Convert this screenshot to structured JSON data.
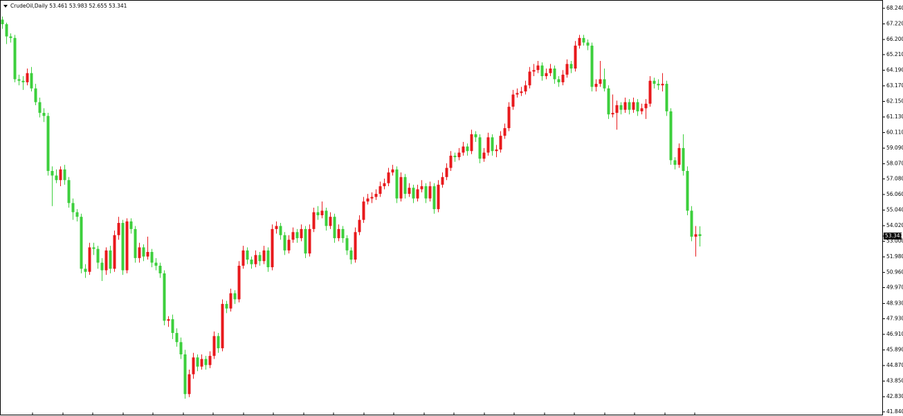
{
  "chart_data": {
    "type": "candlestick",
    "title": "CrudeOil,Daily  53.461 53.983 52.655 53.341",
    "up_color": "#e8191c",
    "down_color": "#3ccf3c",
    "ylim": [
      41.84,
      68.24
    ],
    "yticks": [
      {
        "value": 68.24,
        "label": "68.240"
      },
      {
        "value": 67.22,
        "label": "67.220"
      },
      {
        "value": 66.2,
        "label": "66.200"
      },
      {
        "value": 65.21,
        "label": "65.210"
      },
      {
        "value": 64.19,
        "label": "64.190"
      },
      {
        "value": 63.17,
        "label": "63.170"
      },
      {
        "value": 62.15,
        "label": "62.150"
      },
      {
        "value": 61.13,
        "label": "61.130"
      },
      {
        "value": 60.11,
        "label": "60.110"
      },
      {
        "value": 59.09,
        "label": "59.090"
      },
      {
        "value": 58.07,
        "label": "58.070"
      },
      {
        "value": 57.08,
        "label": "57.080"
      },
      {
        "value": 56.06,
        "label": "56.060"
      },
      {
        "value": 55.04,
        "label": "55.040"
      },
      {
        "value": 54.02,
        "label": "54.020"
      },
      {
        "value": 53,
        "label": "53.000"
      },
      {
        "value": 51.98,
        "label": "51.980"
      },
      {
        "value": 50.96,
        "label": "50.960"
      },
      {
        "value": 49.97,
        "label": "49.970"
      },
      {
        "value": 48.93,
        "label": "48.930"
      },
      {
        "value": 47.93,
        "label": "47.930"
      },
      {
        "value": 46.91,
        "label": "46.910"
      },
      {
        "value": 45.89,
        "label": "45.890"
      },
      {
        "value": 44.87,
        "label": "44.870"
      },
      {
        "value": 43.85,
        "label": "43.850"
      },
      {
        "value": 42.83,
        "label": "42.830"
      },
      {
        "value": 41.84,
        "label": "41.840"
      }
    ],
    "last_price": 53.341,
    "candles": [
      [
        67.5,
        67.7,
        66.9,
        67.2
      ],
      [
        67.2,
        67.3,
        65.9,
        66.4
      ],
      [
        66.4,
        66.6,
        66.0,
        66.3
      ],
      [
        66.3,
        66.5,
        63.4,
        63.6
      ],
      [
        63.6,
        63.9,
        63.2,
        63.5
      ],
      [
        63.5,
        63.8,
        62.9,
        63.4
      ],
      [
        63.4,
        64.3,
        63.2,
        64.0
      ],
      [
        64.0,
        64.4,
        62.8,
        63.0
      ],
      [
        63.0,
        63.3,
        61.9,
        62.1
      ],
      [
        62.1,
        62.4,
        61.1,
        61.4
      ],
      [
        61.4,
        61.7,
        60.8,
        61.2
      ],
      [
        61.2,
        61.4,
        57.3,
        57.6
      ],
      [
        57.6,
        57.9,
        55.3,
        57.3
      ],
      [
        57.3,
        57.7,
        56.8,
        57.0
      ],
      [
        57.0,
        57.9,
        56.6,
        57.7
      ],
      [
        57.7,
        58.0,
        56.7,
        57.0
      ],
      [
        57.0,
        57.2,
        55.2,
        55.5
      ],
      [
        55.5,
        55.8,
        54.4,
        54.9
      ],
      [
        54.9,
        55.1,
        54.3,
        54.6
      ],
      [
        54.6,
        54.8,
        50.9,
        51.2
      ],
      [
        51.2,
        51.5,
        50.6,
        51.0
      ],
      [
        51.0,
        52.9,
        50.8,
        52.6
      ],
      [
        52.6,
        52.9,
        52.1,
        52.5
      ],
      [
        52.5,
        52.7,
        51.2,
        51.6
      ],
      [
        51.6,
        51.9,
        50.4,
        51.1
      ],
      [
        51.1,
        52.6,
        50.8,
        52.4
      ],
      [
        52.4,
        52.7,
        50.9,
        51.2
      ],
      [
        51.2,
        53.7,
        51.0,
        53.4
      ],
      [
        53.4,
        54.6,
        53.1,
        54.2
      ],
      [
        54.2,
        54.4,
        50.8,
        51.1
      ],
      [
        51.1,
        54.5,
        50.9,
        54.3
      ],
      [
        54.3,
        54.5,
        53.5,
        53.8
      ],
      [
        53.8,
        54.0,
        51.6,
        51.9
      ],
      [
        51.9,
        52.9,
        51.6,
        52.6
      ],
      [
        52.6,
        52.8,
        51.7,
        52.0
      ],
      [
        52.0,
        53.3,
        51.8,
        52.3
      ],
      [
        52.3,
        52.5,
        51.3,
        51.6
      ],
      [
        51.6,
        51.9,
        51.1,
        51.4
      ],
      [
        51.4,
        51.6,
        50.6,
        50.9
      ],
      [
        50.9,
        51.1,
        47.5,
        47.8
      ],
      [
        47.8,
        48.1,
        47.4,
        47.9
      ],
      [
        47.9,
        48.2,
        46.6,
        47.0
      ],
      [
        47.0,
        47.3,
        46.1,
        46.4
      ],
      [
        46.4,
        46.7,
        45.3,
        45.6
      ],
      [
        45.6,
        45.9,
        42.7,
        43.0
      ],
      [
        43.0,
        44.6,
        42.8,
        44.3
      ],
      [
        44.3,
        45.7,
        44.0,
        45.4
      ],
      [
        45.4,
        45.6,
        44.5,
        44.8
      ],
      [
        44.8,
        45.6,
        44.6,
        45.3
      ],
      [
        45.3,
        45.5,
        44.6,
        44.9
      ],
      [
        44.9,
        45.8,
        44.7,
        45.5
      ],
      [
        45.5,
        47.1,
        45.3,
        46.8
      ],
      [
        46.8,
        47.0,
        45.7,
        46.0
      ],
      [
        46.0,
        49.2,
        45.8,
        48.9
      ],
      [
        48.9,
        49.1,
        48.3,
        48.6
      ],
      [
        48.6,
        49.9,
        48.4,
        49.6
      ],
      [
        49.6,
        49.8,
        48.9,
        49.2
      ],
      [
        49.2,
        51.7,
        49.0,
        51.4
      ],
      [
        51.4,
        52.7,
        51.2,
        52.4
      ],
      [
        52.4,
        52.6,
        51.5,
        51.8
      ],
      [
        51.8,
        52.0,
        51.2,
        51.5
      ],
      [
        51.5,
        52.4,
        51.3,
        52.1
      ],
      [
        52.1,
        52.3,
        51.4,
        51.7
      ],
      [
        51.7,
        52.7,
        51.5,
        52.4
      ],
      [
        52.4,
        52.6,
        51.0,
        51.3
      ],
      [
        51.3,
        54.1,
        51.1,
        53.8
      ],
      [
        53.8,
        54.3,
        53.5,
        54.0
      ],
      [
        54.0,
        54.2,
        53.1,
        53.4
      ],
      [
        53.4,
        53.6,
        52.1,
        52.4
      ],
      [
        52.4,
        53.4,
        52.2,
        53.1
      ],
      [
        53.1,
        53.9,
        52.9,
        53.6
      ],
      [
        53.6,
        53.8,
        52.9,
        53.2
      ],
      [
        53.2,
        54.1,
        53.0,
        53.8
      ],
      [
        53.8,
        54.0,
        51.9,
        52.2
      ],
      [
        52.2,
        54.1,
        52.0,
        53.8
      ],
      [
        53.8,
        55.2,
        53.6,
        54.9
      ],
      [
        54.9,
        55.3,
        54.4,
        54.7
      ],
      [
        54.7,
        55.6,
        54.5,
        55.0
      ],
      [
        55.0,
        55.2,
        53.7,
        54.0
      ],
      [
        54.0,
        54.9,
        53.8,
        54.6
      ],
      [
        54.6,
        54.8,
        52.9,
        53.2
      ],
      [
        53.2,
        54.1,
        53.0,
        53.8
      ],
      [
        53.8,
        54.0,
        52.9,
        53.2
      ],
      [
        53.2,
        53.4,
        52.1,
        52.4
      ],
      [
        52.4,
        52.6,
        51.5,
        51.8
      ],
      [
        51.8,
        53.9,
        51.6,
        53.6
      ],
      [
        53.6,
        54.7,
        53.4,
        54.4
      ],
      [
        54.4,
        55.9,
        54.2,
        55.6
      ],
      [
        55.6,
        56.1,
        55.4,
        55.8
      ],
      [
        55.8,
        56.2,
        55.5,
        55.9
      ],
      [
        55.9,
        56.4,
        55.7,
        56.1
      ],
      [
        56.1,
        56.9,
        55.9,
        56.6
      ],
      [
        56.6,
        57.1,
        56.4,
        56.8
      ],
      [
        56.8,
        57.8,
        56.6,
        57.5
      ],
      [
        57.5,
        58.0,
        57.3,
        57.7
      ],
      [
        57.7,
        57.9,
        55.5,
        55.8
      ],
      [
        55.8,
        57.5,
        55.6,
        57.2
      ],
      [
        57.2,
        57.4,
        55.8,
        56.1
      ],
      [
        56.1,
        56.8,
        55.9,
        56.5
      ],
      [
        56.5,
        56.7,
        55.5,
        55.8
      ],
      [
        55.8,
        56.7,
        55.6,
        56.4
      ],
      [
        56.4,
        57.0,
        56.2,
        56.6
      ],
      [
        56.6,
        56.8,
        55.5,
        55.8
      ],
      [
        55.8,
        56.9,
        55.6,
        56.6
      ],
      [
        56.6,
        56.8,
        54.8,
        55.1
      ],
      [
        55.1,
        57.0,
        54.9,
        56.7
      ],
      [
        56.7,
        57.5,
        56.5,
        57.2
      ],
      [
        57.2,
        58.1,
        57.0,
        57.8
      ],
      [
        57.8,
        58.9,
        57.6,
        58.6
      ],
      [
        58.6,
        58.8,
        58.2,
        58.5
      ],
      [
        58.5,
        59.1,
        58.3,
        58.8
      ],
      [
        58.8,
        59.5,
        58.6,
        59.2
      ],
      [
        59.2,
        59.4,
        58.6,
        58.9
      ],
      [
        58.9,
        60.3,
        58.7,
        60.0
      ],
      [
        60.0,
        60.2,
        59.5,
        59.8
      ],
      [
        59.8,
        60.0,
        58.1,
        58.4
      ],
      [
        58.4,
        59.1,
        58.2,
        58.8
      ],
      [
        58.8,
        60.1,
        58.6,
        59.8
      ],
      [
        59.8,
        60.0,
        58.6,
        58.9
      ],
      [
        58.9,
        59.3,
        58.5,
        59.0
      ],
      [
        59.0,
        60.2,
        58.8,
        59.9
      ],
      [
        59.9,
        60.7,
        59.7,
        60.4
      ],
      [
        60.4,
        62.1,
        60.2,
        61.8
      ],
      [
        61.8,
        62.9,
        61.6,
        62.6
      ],
      [
        62.6,
        63.0,
        62.4,
        62.7
      ],
      [
        62.7,
        63.1,
        62.5,
        62.8
      ],
      [
        62.8,
        63.5,
        62.6,
        63.2
      ],
      [
        63.2,
        64.4,
        63.0,
        64.1
      ],
      [
        64.1,
        64.6,
        63.8,
        64.2
      ],
      [
        64.2,
        64.8,
        64.0,
        64.5
      ],
      [
        64.5,
        64.7,
        63.5,
        63.8
      ],
      [
        63.8,
        64.3,
        63.6,
        64.0
      ],
      [
        64.0,
        64.6,
        63.8,
        64.3
      ],
      [
        64.3,
        64.5,
        63.3,
        63.6
      ],
      [
        63.6,
        63.8,
        63.1,
        63.4
      ],
      [
        63.4,
        64.2,
        63.2,
        63.9
      ],
      [
        63.9,
        64.9,
        63.7,
        64.6
      ],
      [
        64.6,
        64.8,
        64.0,
        64.3
      ],
      [
        64.3,
        66.1,
        64.1,
        65.8
      ],
      [
        65.8,
        66.5,
        65.6,
        66.3
      ],
      [
        66.3,
        66.5,
        65.8,
        66.0
      ],
      [
        66.0,
        66.2,
        65.5,
        65.8
      ],
      [
        65.8,
        66.0,
        62.8,
        63.1
      ],
      [
        63.1,
        63.6,
        62.8,
        63.3
      ],
      [
        63.3,
        64.8,
        63.1,
        63.6
      ],
      [
        63.6,
        64.3,
        62.8,
        63.0
      ],
      [
        63.0,
        63.2,
        61.0,
        61.3
      ],
      [
        61.3,
        62.6,
        61.1,
        61.4
      ],
      [
        61.4,
        62.2,
        60.3,
        61.9
      ],
      [
        61.9,
        62.1,
        61.3,
        61.6
      ],
      [
        61.6,
        62.4,
        61.4,
        62.1
      ],
      [
        62.1,
        62.3,
        61.3,
        61.6
      ],
      [
        61.6,
        62.4,
        61.4,
        62.1
      ],
      [
        62.1,
        62.3,
        61.2,
        61.5
      ],
      [
        61.5,
        62.0,
        61.3,
        61.7
      ],
      [
        61.7,
        62.3,
        61.0,
        62.0
      ],
      [
        62.0,
        63.8,
        61.8,
        63.5
      ],
      [
        63.5,
        63.7,
        63.0,
        63.3
      ],
      [
        63.3,
        63.6,
        62.9,
        63.2
      ],
      [
        63.2,
        64.0,
        62.8,
        63.3
      ],
      [
        63.3,
        63.5,
        61.2,
        61.5
      ],
      [
        61.5,
        61.7,
        58.0,
        58.3
      ],
      [
        58.3,
        58.5,
        57.7,
        58.0
      ],
      [
        58.0,
        59.4,
        57.8,
        59.1
      ],
      [
        59.1,
        60.0,
        57.3,
        57.6
      ],
      [
        57.6,
        57.9,
        54.7,
        55.0
      ],
      [
        55.0,
        55.3,
        53.0,
        53.3
      ],
      [
        53.3,
        54.0,
        52.0,
        53.46
      ],
      [
        53.461,
        53.983,
        52.655,
        53.341
      ]
    ]
  }
}
